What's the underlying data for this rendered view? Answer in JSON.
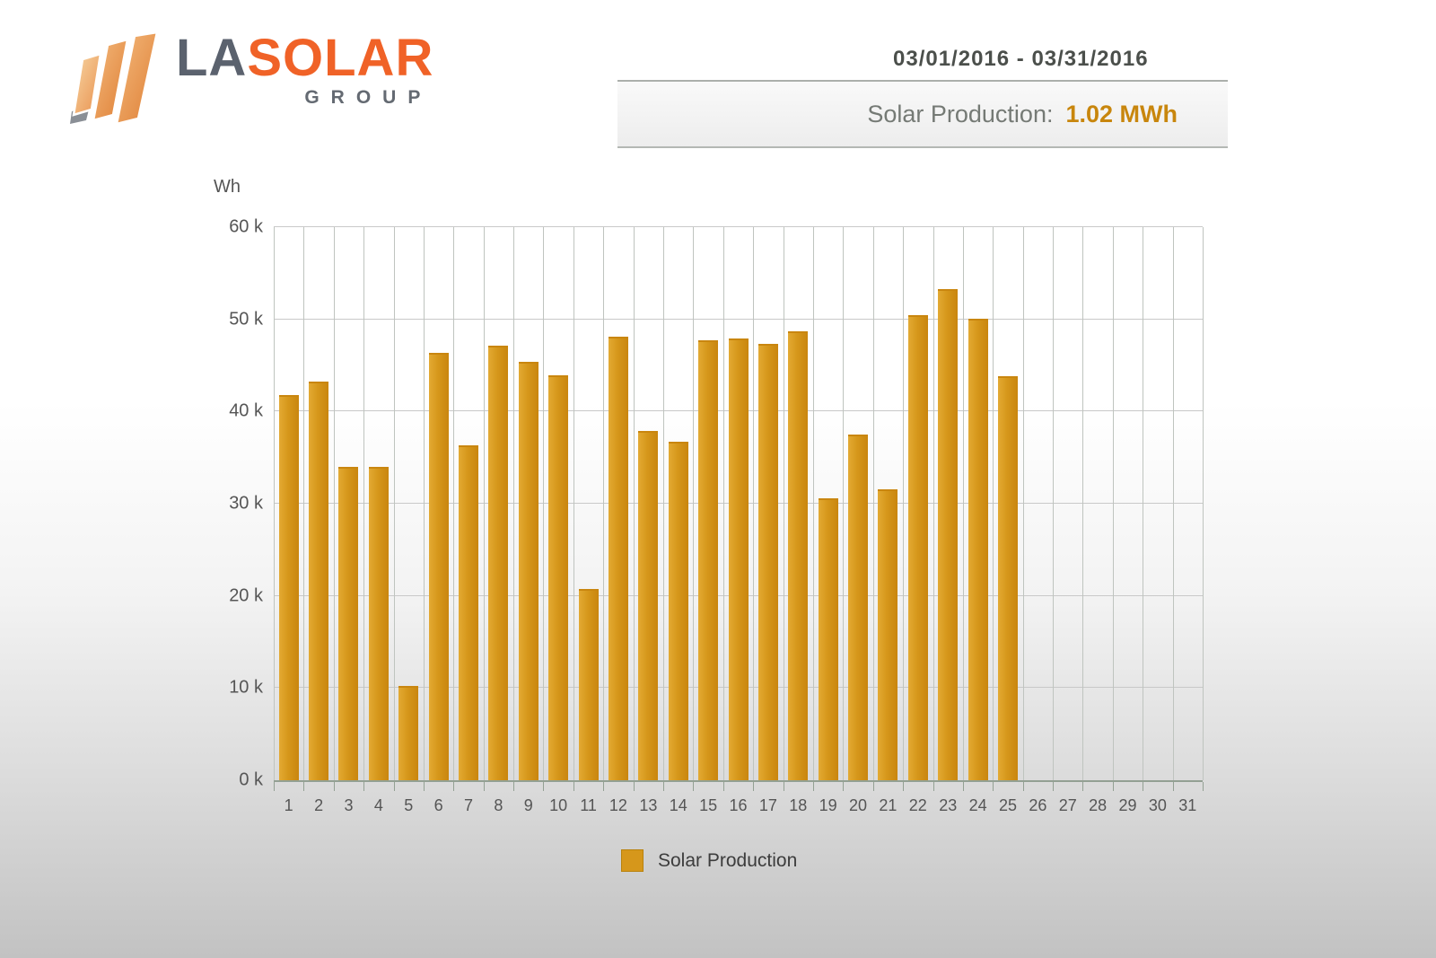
{
  "logo": {
    "part1": "LA",
    "part2": "SOLAR",
    "part3": "GROUP"
  },
  "header": {
    "date_range": "03/01/2016 - 03/31/2016",
    "production_label": "Solar Production:",
    "production_value": "1.02 MWh"
  },
  "chart_data": {
    "type": "bar",
    "title": "",
    "xlabel": "",
    "ylabel": "Wh",
    "ylim": [
      0,
      60000
    ],
    "ytick_step": 10000,
    "ytick_labels": [
      "0 k",
      "10 k",
      "20 k",
      "30 k",
      "40 k",
      "50 k",
      "60 k"
    ],
    "grid": true,
    "legend_position": "bottom",
    "categories": [
      "1",
      "2",
      "3",
      "4",
      "5",
      "6",
      "7",
      "8",
      "9",
      "10",
      "11",
      "12",
      "13",
      "14",
      "15",
      "16",
      "17",
      "18",
      "19",
      "20",
      "21",
      "22",
      "23",
      "24",
      "25",
      "26",
      "27",
      "28",
      "29",
      "30",
      "31"
    ],
    "series": [
      {
        "name": "Solar Production",
        "values": [
          41800,
          43200,
          34000,
          34000,
          10200,
          46400,
          36300,
          47100,
          45400,
          43900,
          20700,
          48100,
          37900,
          36700,
          47700,
          47900,
          47300,
          48700,
          30600,
          37500,
          31600,
          50500,
          53300,
          50100,
          43800,
          0,
          0,
          0,
          0,
          0,
          0
        ]
      }
    ]
  },
  "legend": {
    "label": "Solar Production"
  },
  "colors": {
    "accent_orange": "#f06227",
    "logo_gray": "#5b626e",
    "bar_light": "#e3aa33",
    "bar_mid": "#d6971b",
    "bar_dark": "#c9860f",
    "production_value_gold": "#c8860d",
    "axis_text_gray": "#555555"
  }
}
